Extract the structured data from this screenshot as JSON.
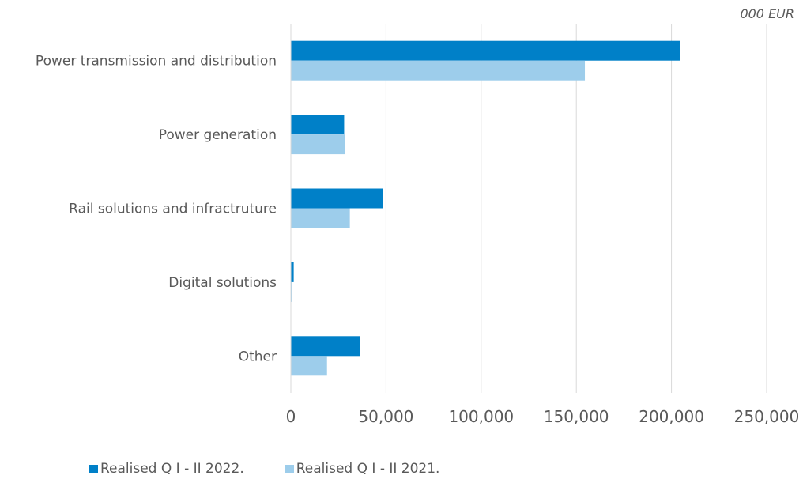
{
  "chart_data": {
    "type": "bar",
    "orientation": "horizontal",
    "unit_note": "000 EUR",
    "categories": [
      "Power transmission and distribution",
      "Power generation",
      "Rail solutions and infractruture",
      "Digital solutions",
      "Other"
    ],
    "series": [
      {
        "name": "Realised Q I - II 2022.",
        "color": "#0080c8",
        "values": [
          204500,
          28000,
          48500,
          1500,
          36500
        ]
      },
      {
        "name": "Realised Q I - II 2021.",
        "color": "#9dcdeb",
        "values": [
          154500,
          28500,
          31000,
          800,
          19000
        ]
      }
    ],
    "xlim": [
      0,
      250000
    ],
    "xticks": [
      0,
      50000,
      100000,
      150000,
      200000,
      250000
    ],
    "xtick_labels": [
      "0",
      "50,000",
      "100,000",
      "150,000",
      "200,000",
      "250,000"
    ],
    "grid": true,
    "legend_position": "bottom"
  }
}
